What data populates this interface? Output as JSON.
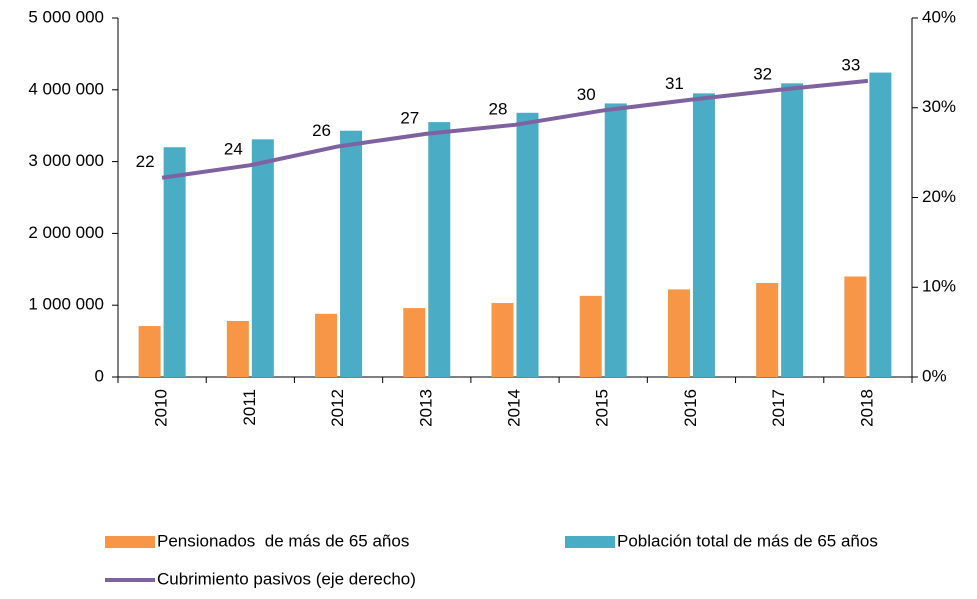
{
  "chart_data": {
    "type": "bar-line",
    "categories": [
      "2010",
      "2011",
      "2012",
      "2013",
      "2014",
      "2015",
      "2016",
      "2017",
      "2018"
    ],
    "series": [
      {
        "name": "Pensionados  de más de 65 años",
        "color": "#f79646",
        "type": "bar",
        "values": [
          710000,
          780000,
          880000,
          960000,
          1030000,
          1130000,
          1220000,
          1310000,
          1400000
        ]
      },
      {
        "name": "Población total de más de 65 años",
        "color": "#4bacc6",
        "type": "bar",
        "values": [
          3200000,
          3310000,
          3430000,
          3550000,
          3680000,
          3810000,
          3950000,
          4090000,
          4240000
        ]
      },
      {
        "name": "Cubrimiento pasivos (eje derecho)",
        "color": "#7f62a0",
        "type": "line",
        "axis": "y2",
        "values": [
          22.2,
          23.6,
          25.7,
          27.1,
          28.1,
          29.7,
          30.9,
          32.0,
          33.0
        ],
        "value_labels": [
          "22",
          "24",
          "26",
          "27",
          "28",
          "30",
          "31",
          "32",
          "33"
        ]
      }
    ],
    "ylim": [
      0,
      5000000
    ],
    "yticks": [
      0,
      {
        "value": 1000000,
        "label": "1 000 000"
      },
      {
        "value": 2000000,
        "label": "2 000 000"
      },
      {
        "value": 3000000,
        "label": "3 000 000"
      },
      {
        "value": 4000000,
        "label": "4 000 000"
      },
      {
        "value": 5000000,
        "label": "5 000 000"
      }
    ],
    "y2lim": [
      0,
      40
    ],
    "y2ticks": [
      {
        "value": 0,
        "label": "0%"
      },
      {
        "value": 10,
        "label": "10%"
      },
      {
        "value": 20,
        "label": "20%"
      },
      {
        "value": 30,
        "label": "30%"
      },
      {
        "value": 40,
        "label": "40%"
      }
    ],
    "legend": "bottom"
  }
}
